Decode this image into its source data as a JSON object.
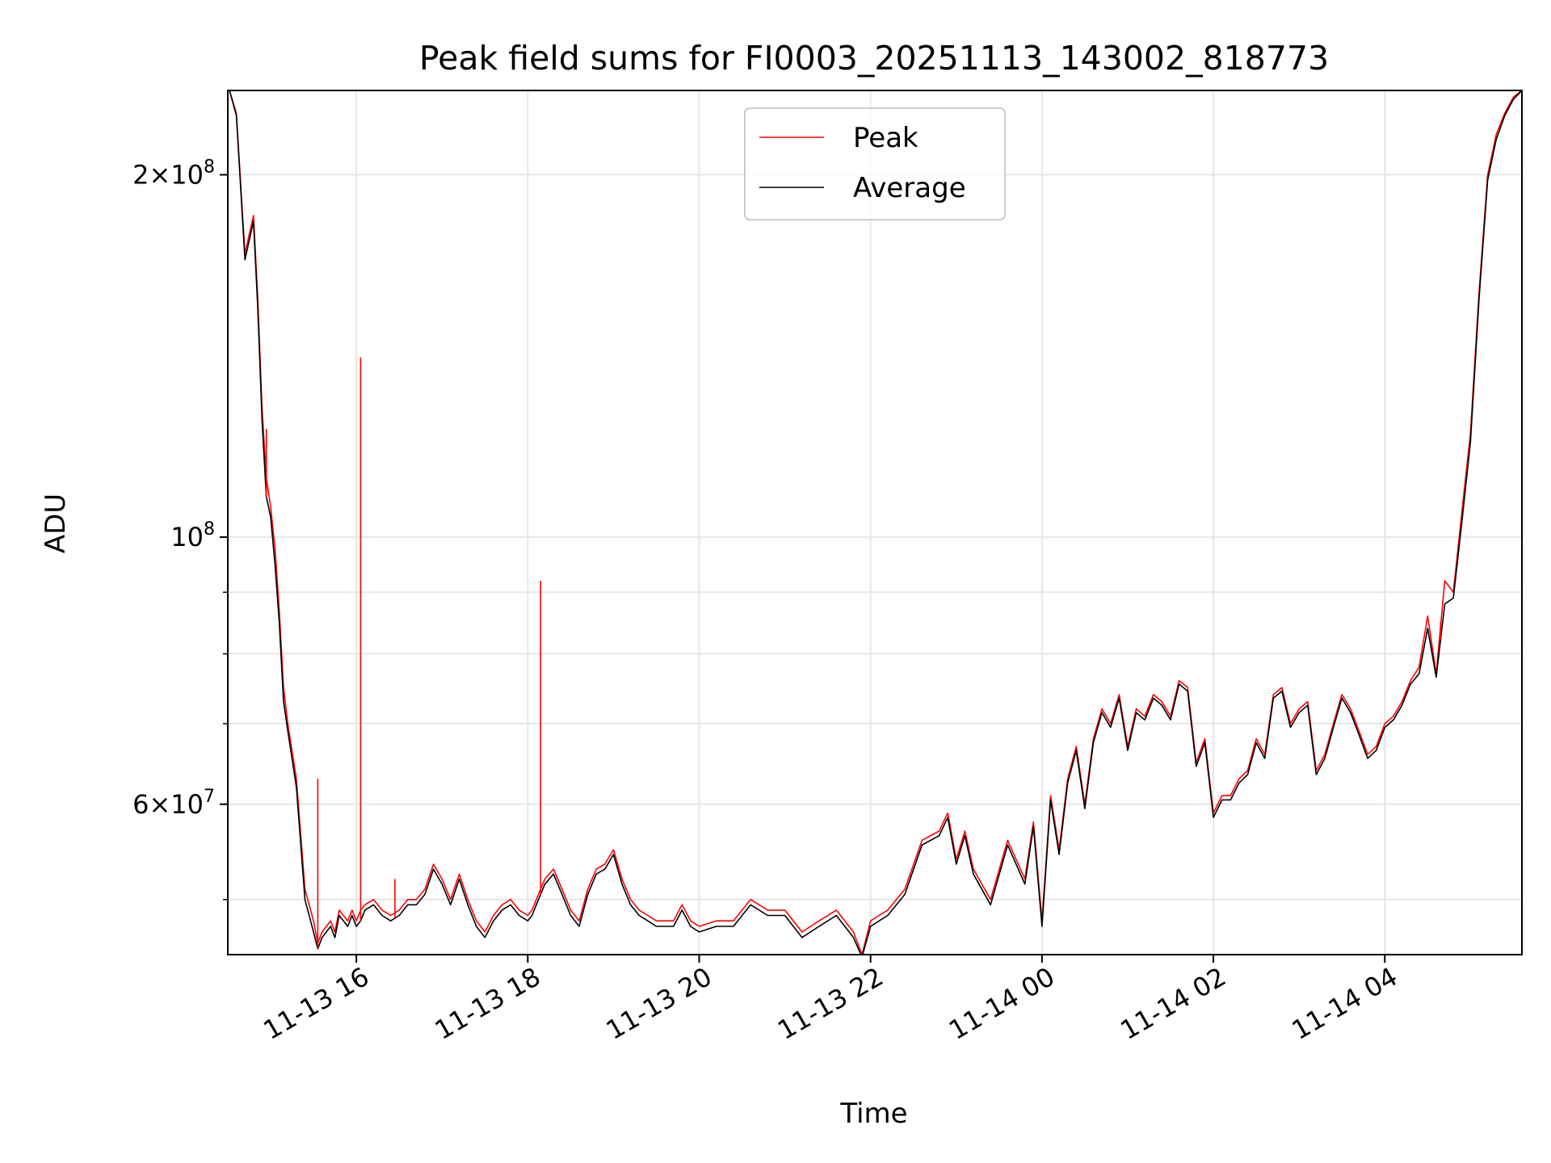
{
  "chart_data": {
    "type": "line",
    "title": "Peak field sums for FI0003_20251113_143002_818773",
    "xlabel": "Time",
    "ylabel": "ADU",
    "yscale": "log",
    "grid": true,
    "legend_placement": "top-center",
    "xlim_hours": [
      14.5,
      29.6
    ],
    "ylim": [
      45000000,
      235000000
    ],
    "x_ticks": [
      {
        "hour": 16,
        "label": "11-13 16"
      },
      {
        "hour": 18,
        "label": "11-13 18"
      },
      {
        "hour": 20,
        "label": "11-13 20"
      },
      {
        "hour": 22,
        "label": "11-13 22"
      },
      {
        "hour": 24,
        "label": "11-14 00"
      },
      {
        "hour": 26,
        "label": "11-14 02"
      },
      {
        "hour": 28,
        "label": "11-14 04"
      }
    ],
    "y_major_ticks": [
      {
        "value": 60000000,
        "mantissa": "6",
        "exp": "7"
      },
      {
        "value": 100000000,
        "mantissa": "",
        "exp": "8"
      },
      {
        "value": 200000000,
        "mantissa": "2",
        "exp": "8"
      }
    ],
    "y_minor_ticks": [
      50000000,
      70000000,
      80000000,
      90000000
    ],
    "series": [
      {
        "name": "Peak",
        "color": "#ff0000",
        "hours": [
          14.52,
          14.6,
          14.7,
          14.8,
          14.85,
          14.9,
          14.95,
          15.0,
          15.05,
          15.1,
          15.15,
          15.2,
          15.3,
          15.4,
          15.5,
          15.55,
          15.6,
          15.7,
          15.75,
          15.8,
          15.9,
          15.95,
          16.0,
          16.05,
          16.1,
          16.2,
          16.3,
          16.4,
          16.5,
          16.6,
          16.7,
          16.8,
          16.9,
          17.0,
          17.1,
          17.2,
          17.3,
          17.4,
          17.5,
          17.6,
          17.7,
          17.8,
          17.9,
          18.0,
          18.05,
          18.1,
          18.15,
          18.2,
          18.3,
          18.4,
          18.5,
          18.6,
          18.7,
          18.8,
          18.9,
          19.0,
          19.1,
          19.2,
          19.3,
          19.4,
          19.5,
          19.6,
          19.7,
          19.8,
          19.9,
          20.0,
          20.2,
          20.4,
          20.6,
          20.8,
          21.0,
          21.2,
          21.4,
          21.6,
          21.8,
          21.9,
          22.0,
          22.1,
          22.2,
          22.4,
          22.6,
          22.8,
          22.9,
          23.0,
          23.1,
          23.2,
          23.4,
          23.6,
          23.8,
          23.9,
          24.0,
          24.1,
          24.2,
          24.3,
          24.4,
          24.5,
          24.6,
          24.7,
          24.8,
          24.9,
          25.0,
          25.1,
          25.2,
          25.3,
          25.4,
          25.5,
          25.6,
          25.7,
          25.8,
          25.9,
          26.0,
          26.1,
          26.2,
          26.3,
          26.4,
          26.5,
          26.6,
          26.7,
          26.8,
          26.9,
          27.0,
          27.1,
          27.2,
          27.3,
          27.4,
          27.5,
          27.6,
          27.7,
          27.8,
          27.9,
          28.0,
          28.1,
          28.2,
          28.3,
          28.4,
          28.5,
          28.6,
          28.7,
          28.8,
          28.9,
          29.0,
          29.1,
          29.2,
          29.3,
          29.4,
          29.5,
          29.6
        ],
        "values": [
          235000000,
          225000000,
          172000000,
          185000000,
          158000000,
          128000000,
          112000000,
          106000000,
          98000000,
          87000000,
          75000000,
          70000000,
          63000000,
          51000000,
          48000000,
          46000000,
          47000000,
          48000000,
          47000000,
          49000000,
          48000000,
          49000000,
          48000000,
          49000000,
          49500000,
          50000000,
          49000000,
          48500000,
          49000000,
          50000000,
          50000000,
          51000000,
          53500000,
          52000000,
          50000000,
          52500000,
          50000000,
          48000000,
          47000000,
          48500000,
          49500000,
          50000000,
          49000000,
          48500000,
          49000000,
          50000000,
          51000000,
          52000000,
          53000000,
          51000000,
          49000000,
          48000000,
          51000000,
          53000000,
          53500000,
          55000000,
          52000000,
          50000000,
          49000000,
          48500000,
          48000000,
          48000000,
          48000000,
          49500000,
          48000000,
          47500000,
          48000000,
          48000000,
          50000000,
          49000000,
          49000000,
          47000000,
          48000000,
          49000000,
          47000000,
          45000000,
          48000000,
          48500000,
          49000000,
          51000000,
          56000000,
          57000000,
          59000000,
          54000000,
          57000000,
          53000000,
          50000000,
          56000000,
          52000000,
          58000000,
          48000000,
          61000000,
          55000000,
          63000000,
          67000000,
          60000000,
          68000000,
          72000000,
          70000000,
          74000000,
          67000000,
          72000000,
          71000000,
          74000000,
          73000000,
          71000000,
          76000000,
          75000000,
          65000000,
          68000000,
          59000000,
          61000000,
          61000000,
          63000000,
          64000000,
          68000000,
          66000000,
          74000000,
          75000000,
          70000000,
          72000000,
          73000000,
          64000000,
          66000000,
          70000000,
          74000000,
          72000000,
          69000000,
          66000000,
          67000000,
          70000000,
          71000000,
          73000000,
          76000000,
          78000000,
          86000000,
          77000000,
          92000000,
          90000000,
          105000000,
          122000000,
          160000000,
          200000000,
          216000000,
          225000000,
          232000000,
          235000000
        ]
      },
      {
        "name": "Average",
        "color": "#000000",
        "hours": [
          14.52,
          14.6,
          14.7,
          14.8,
          14.85,
          14.9,
          14.95,
          15.0,
          15.05,
          15.1,
          15.15,
          15.2,
          15.3,
          15.4,
          15.5,
          15.55,
          15.6,
          15.7,
          15.75,
          15.8,
          15.9,
          15.95,
          16.0,
          16.05,
          16.1,
          16.2,
          16.3,
          16.4,
          16.5,
          16.6,
          16.7,
          16.8,
          16.9,
          17.0,
          17.1,
          17.2,
          17.3,
          17.4,
          17.5,
          17.6,
          17.7,
          17.8,
          17.9,
          18.0,
          18.05,
          18.1,
          18.15,
          18.2,
          18.3,
          18.4,
          18.5,
          18.6,
          18.7,
          18.8,
          18.9,
          19.0,
          19.1,
          19.2,
          19.3,
          19.4,
          19.5,
          19.6,
          19.7,
          19.8,
          19.9,
          20.0,
          20.2,
          20.4,
          20.6,
          20.8,
          21.0,
          21.2,
          21.4,
          21.6,
          21.8,
          21.9,
          22.0,
          22.1,
          22.2,
          22.4,
          22.6,
          22.8,
          22.9,
          23.0,
          23.1,
          23.2,
          23.4,
          23.6,
          23.8,
          23.9,
          24.0,
          24.1,
          24.2,
          24.3,
          24.4,
          24.5,
          24.6,
          24.7,
          24.8,
          24.9,
          25.0,
          25.1,
          25.2,
          25.3,
          25.4,
          25.5,
          25.6,
          25.7,
          25.8,
          25.9,
          26.0,
          26.1,
          26.2,
          26.3,
          26.4,
          26.5,
          26.6,
          26.7,
          26.8,
          26.9,
          27.0,
          27.1,
          27.2,
          27.3,
          27.4,
          27.5,
          27.6,
          27.7,
          27.8,
          27.9,
          28.0,
          28.1,
          28.2,
          28.3,
          28.4,
          28.5,
          28.6,
          28.7,
          28.8,
          28.9,
          29.0,
          29.1,
          29.2,
          29.3,
          29.4,
          29.5,
          29.6
        ],
        "values": [
          235000000,
          224000000,
          170000000,
          183000000,
          155000000,
          125000000,
          108000000,
          104000000,
          95000000,
          85000000,
          73000000,
          69000000,
          62000000,
          50000000,
          47000000,
          45500000,
          46500000,
          47500000,
          46500000,
          48500000,
          47500000,
          48500000,
          47500000,
          48000000,
          49000000,
          49500000,
          48500000,
          48000000,
          48500000,
          49500000,
          49500000,
          50500000,
          53000000,
          51500000,
          49500000,
          52000000,
          49500000,
          47500000,
          46500000,
          48000000,
          49000000,
          49500000,
          48500000,
          48000000,
          48500000,
          49500000,
          50500000,
          51500000,
          52500000,
          50500000,
          48500000,
          47500000,
          50500000,
          52500000,
          53000000,
          54500000,
          51500000,
          49500000,
          48500000,
          48000000,
          47500000,
          47500000,
          47500000,
          49000000,
          47500000,
          47000000,
          47500000,
          47500000,
          49500000,
          48500000,
          48500000,
          46500000,
          47500000,
          48500000,
          46500000,
          44800000,
          47500000,
          48000000,
          48500000,
          50500000,
          55500000,
          56500000,
          58500000,
          53500000,
          56500000,
          52500000,
          49500000,
          55500000,
          51500000,
          57500000,
          47500000,
          60500000,
          54500000,
          62500000,
          66500000,
          59500000,
          67500000,
          71500000,
          69500000,
          73500000,
          66500000,
          71500000,
          70500000,
          73500000,
          72500000,
          70500000,
          75500000,
          74500000,
          64500000,
          67500000,
          58500000,
          60500000,
          60500000,
          62500000,
          63500000,
          67500000,
          65500000,
          73500000,
          74500000,
          69500000,
          71500000,
          72500000,
          63500000,
          65500000,
          69500000,
          73500000,
          71500000,
          68500000,
          65500000,
          66500000,
          69500000,
          70500000,
          72500000,
          75500000,
          77000000,
          84000000,
          76500000,
          88000000,
          89000000,
          103000000,
          120000000,
          158000000,
          198000000,
          214000000,
          224000000,
          231000000,
          235000000
        ]
      }
    ],
    "spikes": [
      {
        "hour": 14.95,
        "value": 123000000
      },
      {
        "hour": 16.05,
        "value": 141000000
      },
      {
        "hour": 18.15,
        "value": 92000000
      },
      {
        "hour": 15.55,
        "value": 63000000
      },
      {
        "hour": 16.45,
        "value": 52000000
      },
      {
        "hour": 28.65,
        "value": 85000000
      }
    ]
  }
}
